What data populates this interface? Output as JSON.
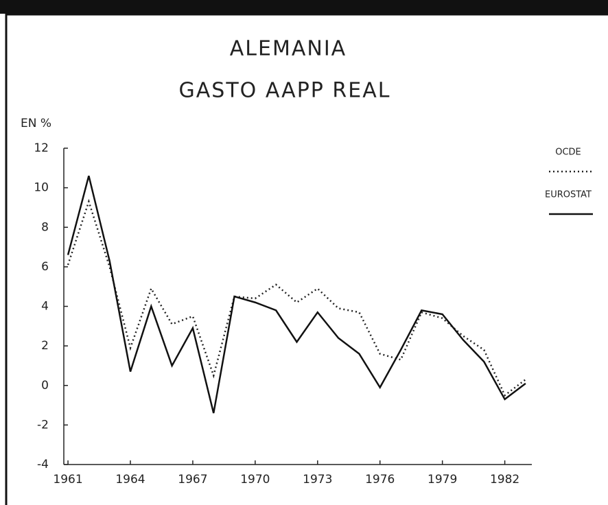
{
  "chart_data": {
    "type": "line",
    "title": "ALEMANIA",
    "subtitle": "GASTO AAPP REAL",
    "ylabel": "EN %",
    "x": [
      1961,
      1962,
      1963,
      1964,
      1965,
      1966,
      1967,
      1968,
      1969,
      1970,
      1971,
      1972,
      1973,
      1974,
      1975,
      1976,
      1977,
      1978,
      1979,
      1980,
      1981,
      1982,
      1983
    ],
    "series": [
      {
        "name": "OCDE",
        "color": "#222222",
        "style": "dotted",
        "values": [
          6.1,
          9.3,
          6.0,
          1.9,
          4.9,
          3.1,
          3.5,
          0.5,
          4.5,
          4.4,
          5.1,
          4.2,
          4.9,
          3.9,
          3.7,
          1.6,
          1.3,
          3.7,
          3.4,
          2.5,
          1.8,
          -0.5,
          0.3
        ]
      },
      {
        "name": "EUROSTAT",
        "color": "#111111",
        "style": "solid",
        "values": [
          6.6,
          10.6,
          6.3,
          0.7,
          4.0,
          1.0,
          2.9,
          -1.4,
          4.5,
          4.2,
          3.8,
          2.2,
          3.7,
          2.4,
          1.6,
          -0.1,
          1.8,
          3.8,
          3.6,
          2.3,
          1.2,
          -0.7,
          0.1
        ]
      }
    ],
    "xlim": [
      1960.8,
      1983.3
    ],
    "xticks": [
      1961,
      1964,
      1967,
      1970,
      1973,
      1976,
      1979,
      1982
    ],
    "ylim": [
      -4,
      12
    ],
    "yticks": [
      -4,
      -2,
      0,
      2,
      4,
      6,
      8,
      10,
      12
    ]
  }
}
